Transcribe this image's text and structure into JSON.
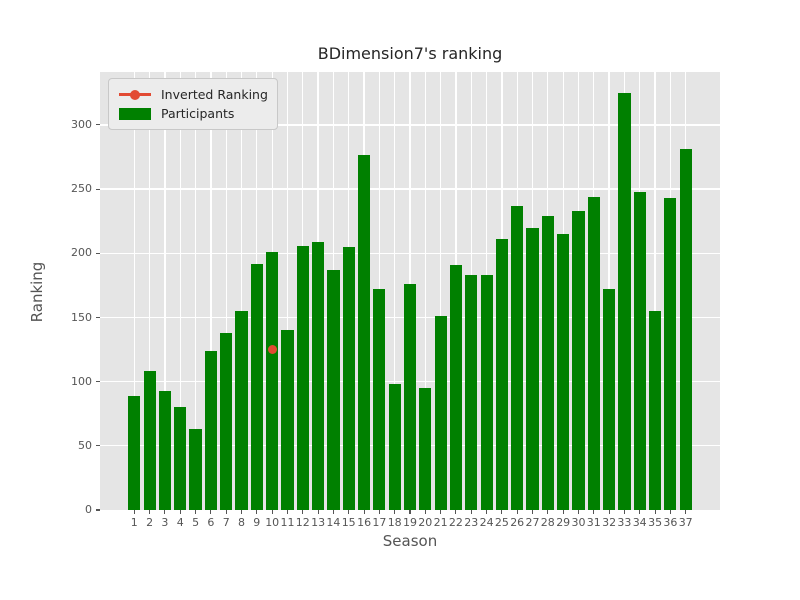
{
  "chart_data": {
    "type": "bar",
    "title": "BDimension7's ranking",
    "xlabel": "Season",
    "ylabel": "Ranking",
    "categories": [
      1,
      2,
      3,
      4,
      5,
      6,
      7,
      8,
      9,
      10,
      11,
      12,
      13,
      14,
      15,
      16,
      17,
      18,
      19,
      20,
      21,
      22,
      23,
      24,
      25,
      26,
      27,
      28,
      29,
      30,
      31,
      32,
      33,
      34,
      35,
      36,
      37
    ],
    "series": [
      {
        "name": "Participants",
        "type": "bar",
        "color": "#008000",
        "values": [
          89,
          108,
          93,
          80,
          63,
          124,
          138,
          155,
          192,
          201,
          140,
          206,
          209,
          187,
          205,
          277,
          172,
          98,
          176,
          95,
          151,
          191,
          183,
          183,
          211,
          237,
          220,
          229,
          215,
          233,
          244,
          172,
          325,
          248,
          155,
          243,
          281
        ]
      },
      {
        "name": "Inverted Ranking",
        "type": "line",
        "marker": "circle",
        "color": "#E24A33",
        "points": [
          {
            "x": 10,
            "y": 125
          }
        ]
      }
    ],
    "yticks": [
      0,
      50,
      100,
      150,
      200,
      250,
      300
    ],
    "ylim": [
      0,
      341.25
    ],
    "xlim": [
      -1.24,
      39.24
    ],
    "grid": true,
    "grid_color": "#FFFFFF",
    "plot_bg_color": "#E5E5E5",
    "tick_color": "#555555",
    "legend_position": "upper left"
  },
  "legend": {
    "items": [
      {
        "label": "Inverted Ranking",
        "swatch": "line-marker",
        "color": "#E24A33"
      },
      {
        "label": "Participants",
        "swatch": "patch",
        "color": "#008000"
      }
    ]
  }
}
